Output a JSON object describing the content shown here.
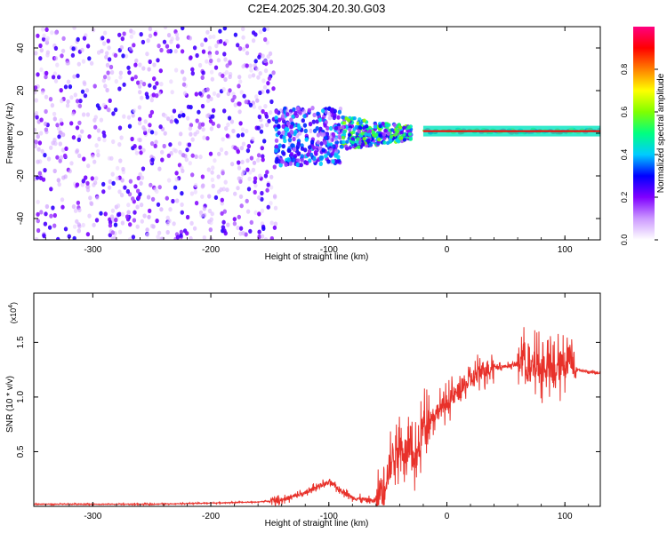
{
  "title": "C2E4.2025.304.20.30.G03",
  "chart_data": [
    {
      "type": "heatmap",
      "xlabel": "Height of straight line (km)",
      "ylabel": "Frequency (Hz)",
      "xlim": [
        -350,
        130
      ],
      "ylim": [
        -50,
        50
      ],
      "x_ticks": [
        -300,
        -200,
        -100,
        0,
        100
      ],
      "y_ticks": [
        -40,
        -20,
        0,
        20,
        40
      ],
      "colorbar": {
        "label": "Normalized spectral amplitude",
        "range": [
          0,
          1
        ],
        "ticks": [
          "0.0",
          "0.2",
          "0.4",
          "0.6",
          "0.8"
        ],
        "colors": [
          "#ffffff",
          "#cc99ff",
          "#8000ff",
          "#0000ff",
          "#00ccff",
          "#00ff80",
          "#80ff00",
          "#ffff00",
          "#ff8000",
          "#ff0000",
          "#ff0080"
        ]
      },
      "features": [
        {
          "region": "scattered noise",
          "x": [
            -350,
            -145
          ],
          "freq": [
            -50,
            50
          ],
          "amplitude": 0.15
        },
        {
          "region": "spread band",
          "x": [
            -145,
            -90
          ],
          "freq": [
            -15,
            12
          ],
          "amplitude": 0.3
        },
        {
          "region": "converging band",
          "x": [
            -90,
            -30
          ],
          "freq": [
            -8,
            8
          ],
          "amplitude": 0.45
        },
        {
          "region": "carrier line",
          "x": [
            -20,
            130
          ],
          "freq": [
            0,
            2
          ],
          "amplitude": 0.8
        }
      ]
    },
    {
      "type": "line",
      "xlabel": "Height of straight line (km)",
      "ylabel": "SNR (10 * v/v)",
      "y_multiplier": "(x10",
      "y_multiplier_exp": "4",
      "y_multiplier_close": ")",
      "xlim": [
        -350,
        130
      ],
      "ylim": [
        0,
        1.95
      ],
      "x_ticks": [
        -300,
        -200,
        -100,
        0,
        100
      ],
      "y_ticks": [
        0.5,
        1.0,
        1.5
      ],
      "color": "#e8312a",
      "x": [
        -350,
        -300,
        -250,
        -200,
        -160,
        -140,
        -120,
        -110,
        -100,
        -90,
        -80,
        -70,
        -60,
        -55,
        -50,
        -45,
        -40,
        -35,
        -30,
        -25,
        -20,
        -10,
        0,
        10,
        20,
        30,
        40,
        50,
        60,
        65,
        70,
        75,
        80,
        85,
        90,
        95,
        100,
        105,
        110,
        120,
        130
      ],
      "y": [
        0.02,
        0.02,
        0.02,
        0.03,
        0.04,
        0.06,
        0.12,
        0.18,
        0.22,
        0.15,
        0.08,
        0.06,
        0.05,
        0.15,
        0.3,
        0.5,
        0.55,
        0.5,
        0.45,
        0.45,
        0.75,
        0.85,
        0.95,
        1.05,
        1.15,
        1.25,
        1.28,
        1.28,
        1.3,
        1.4,
        1.2,
        1.3,
        1.25,
        1.3,
        1.2,
        1.28,
        1.3,
        1.4,
        1.25,
        1.23,
        1.22
      ]
    }
  ]
}
